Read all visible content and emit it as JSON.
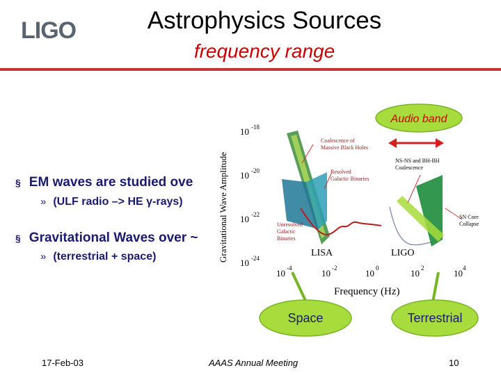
{
  "slide": {
    "logo_text": "LIGO",
    "title": "Astrophysics Sources",
    "subtitle": "frequency range",
    "bullets": [
      {
        "text": "EM  waves are studied ove",
        "sub": "(ULF radio –> HE γ-rays)"
      },
      {
        "text": "Gravitational Waves over ~",
        "sub": "(terrestrial + space)"
      }
    ],
    "bullet_marker": "§",
    "sub_marker": "»"
  },
  "chart_data": {
    "type": "diagram",
    "ylabel": "Gravitational Wave Amplitude",
    "xlabel": "Frequency (Hz)",
    "x_ticks": [
      {
        "base": "10",
        "exp": "-4"
      },
      {
        "base": "10",
        "exp": "-2"
      },
      {
        "base": "10",
        "exp": "0"
      },
      {
        "base": "10",
        "exp": "2"
      },
      {
        "base": "10",
        "exp": "4"
      }
    ],
    "y_ticks": [
      {
        "base": "10",
        "exp": "-18"
      },
      {
        "base": "10",
        "exp": "-20"
      },
      {
        "base": "10",
        "exp": "-22"
      },
      {
        "base": "10",
        "exp": "-24"
      }
    ],
    "annotations": {
      "massive_bh_line1": "Coalescence of",
      "massive_bh_line2": "Massive Black Holes",
      "binaries_line1": "Resolved",
      "binaries_line2": "Galactic Binaries",
      "unresolved_line1": "Unresolved",
      "unresolved_line2": "Galactic",
      "unresolved_line3": "Binaries",
      "nsbh_line1": "NS-NS and BH-BH",
      "nsbh_line2": "Coalescence",
      "sn_line1": "SN Core",
      "sn_line2": "Collapse",
      "lisa": "LISA",
      "ligo": "LIGO"
    }
  },
  "callouts": {
    "audio_band": "Audio band",
    "space": "Space",
    "terrestrial": "Terrestrial"
  },
  "footer": {
    "date": "17-Feb-03",
    "meeting": "AAAS Annual Meeting",
    "page": "10"
  },
  "colors": {
    "title_accent": "#cc0000",
    "rule": "#c83232",
    "bullet_text": "#1a1a6e",
    "callout_fill": "#a8dc3c",
    "callout_border": "#78b428",
    "sensitivity_curve": "#b41e1e",
    "ligo_band": "#1e8c3c",
    "audio_arrow": "#d62020"
  }
}
